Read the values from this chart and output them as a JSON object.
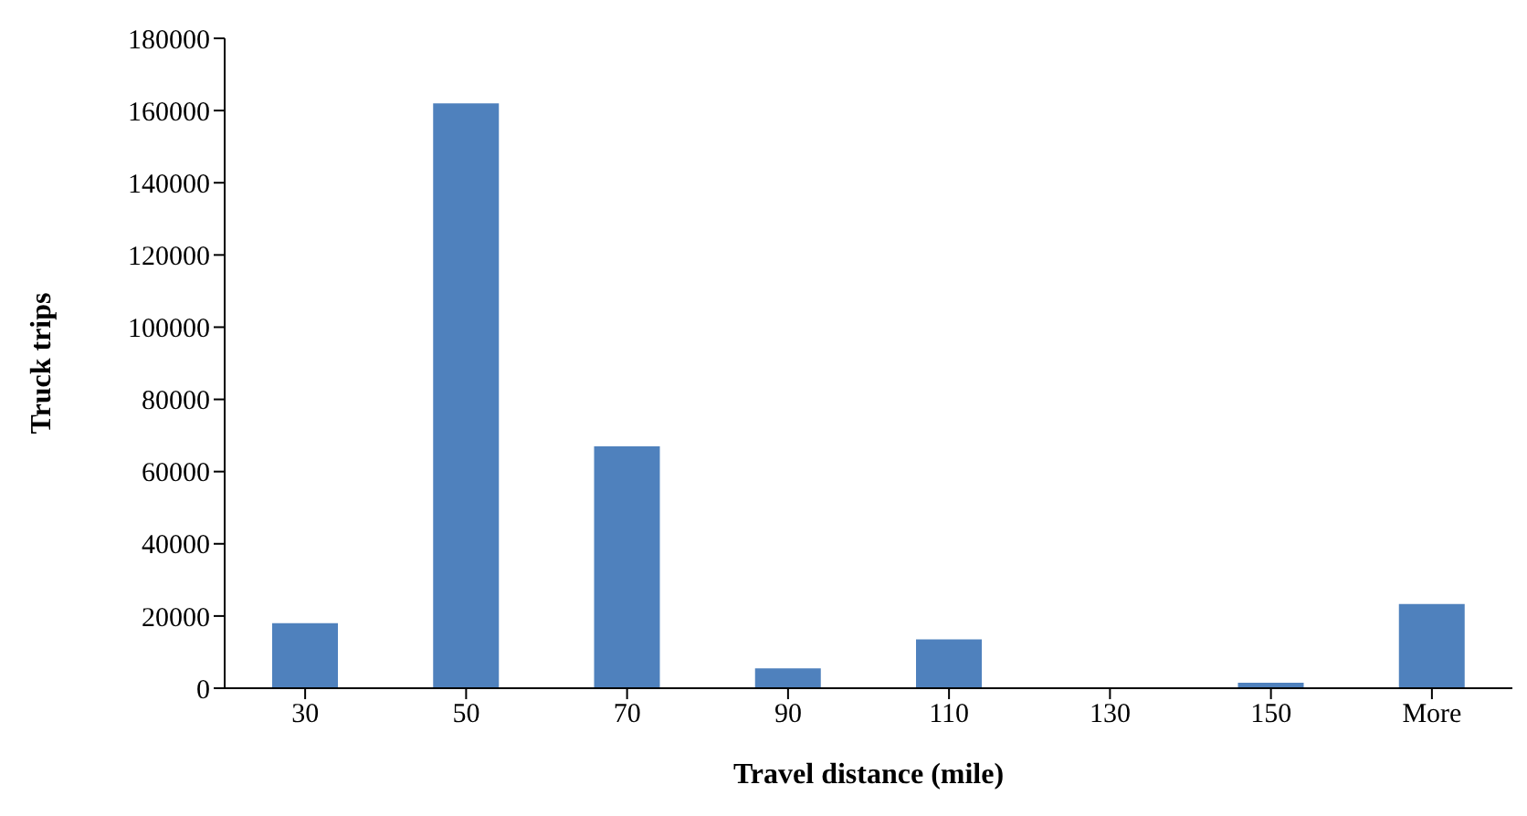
{
  "chart_data": {
    "type": "bar",
    "xlabel": "Travel distance (mile)",
    "ylabel": "Truck trips",
    "categories": [
      "30",
      "50",
      "70",
      "90",
      "110",
      "130",
      "150",
      "More"
    ],
    "values": [
      18000,
      162000,
      67000,
      5500,
      13500,
      0,
      1500,
      23300
    ],
    "color": "#4f81bd",
    "ylim": [
      0,
      180000
    ],
    "yticks": [
      0,
      20000,
      40000,
      60000,
      80000,
      100000,
      120000,
      140000,
      160000,
      180000
    ],
    "grid": false,
    "legend": false
  }
}
